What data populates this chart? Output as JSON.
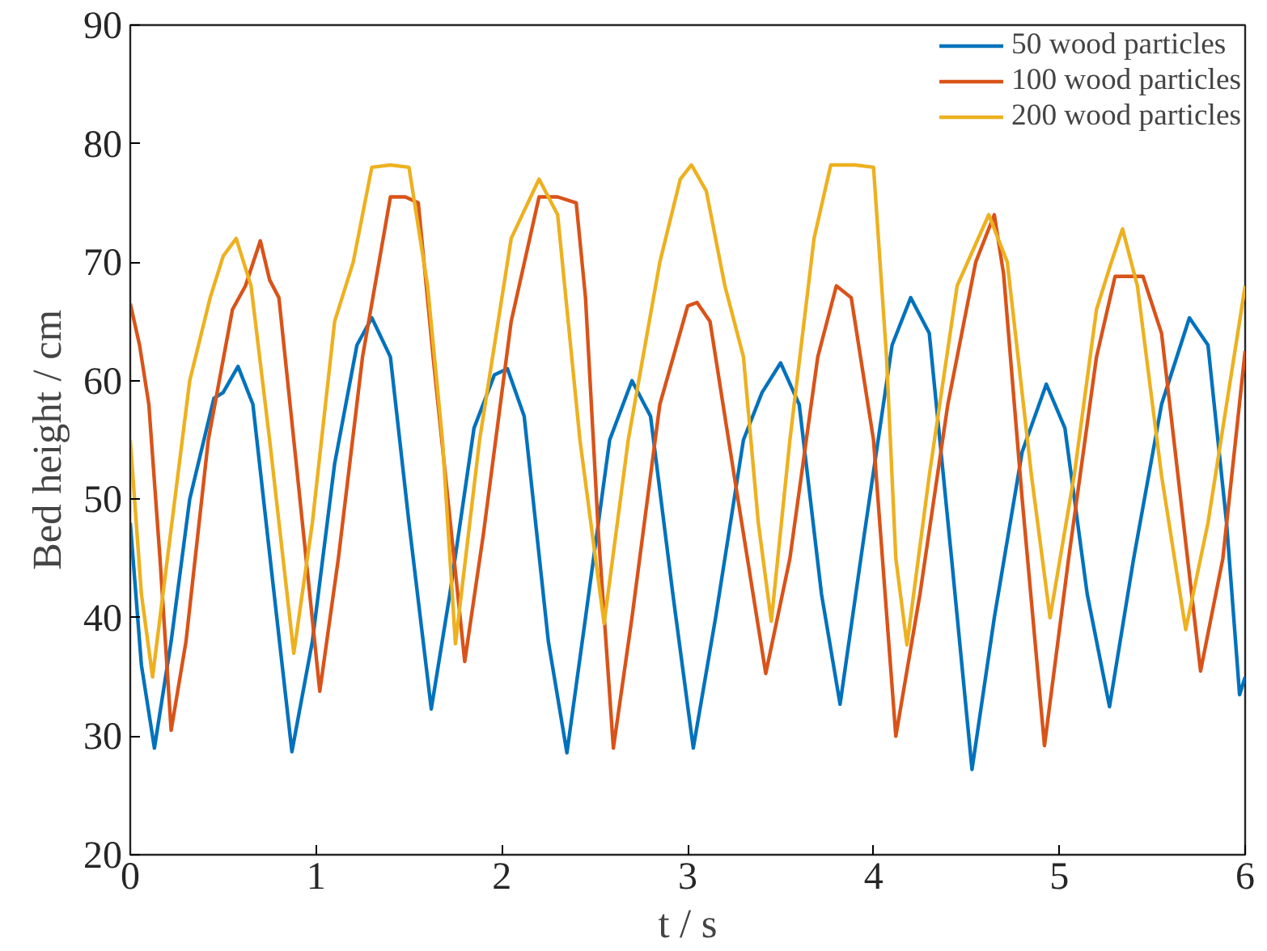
{
  "chart_data": {
    "type": "line",
    "xlabel": "t / s",
    "ylabel": "Bed height / cm",
    "xlim": [
      0,
      6
    ],
    "ylim": [
      20,
      90
    ],
    "xticks": [
      0,
      1,
      2,
      3,
      4,
      5,
      6
    ],
    "yticks": [
      20,
      30,
      40,
      50,
      60,
      70,
      80,
      90
    ],
    "grid": false,
    "legend": "top right",
    "line_style": "solid",
    "marker": "none",
    "series": [
      {
        "name": "50 wood particles",
        "color": "#0072bd",
        "x": [
          0,
          0.06,
          0.13,
          0.22,
          0.32,
          0.45,
          0.5,
          0.58,
          0.66,
          0.76,
          0.87,
          0.98,
          1.1,
          1.22,
          1.3,
          1.4,
          1.5,
          1.62,
          1.72,
          1.85,
          1.96,
          2.03,
          2.12,
          2.25,
          2.35,
          2.45,
          2.58,
          2.7,
          2.8,
          2.92,
          3.03,
          3.15,
          3.3,
          3.4,
          3.5,
          3.6,
          3.72,
          3.82,
          3.95,
          4.1,
          4.2,
          4.3,
          4.42,
          4.53,
          4.65,
          4.8,
          4.93,
          5.03,
          5.15,
          5.27,
          5.4,
          5.55,
          5.7,
          5.8,
          5.9,
          5.97,
          6
        ],
        "values": [
          48,
          36,
          29,
          38,
          50,
          58.5,
          59,
          61.2,
          58,
          44,
          28.7,
          38,
          53,
          63,
          65.3,
          62,
          48,
          32.3,
          42,
          56,
          60.5,
          61,
          57,
          38,
          28.6,
          40,
          55,
          60,
          57,
          42,
          29,
          40,
          55,
          59,
          61.5,
          58,
          42,
          32.7,
          47,
          63,
          67,
          64,
          45,
          27.2,
          40,
          54,
          59.7,
          56,
          42,
          32.5,
          45,
          58,
          65.3,
          63,
          48,
          33.5,
          35
        ]
      },
      {
        "name": "100 wood particles",
        "color": "#d95319",
        "x": [
          0,
          0.05,
          0.1,
          0.16,
          0.22,
          0.3,
          0.42,
          0.55,
          0.62,
          0.7,
          0.75,
          0.8,
          0.9,
          1.02,
          1.12,
          1.25,
          1.4,
          1.48,
          1.55,
          1.63,
          1.8,
          1.9,
          2.05,
          2.2,
          2.3,
          2.4,
          2.45,
          2.52,
          2.6,
          2.7,
          2.85,
          3.0,
          3.05,
          3.12,
          3.25,
          3.42,
          3.55,
          3.7,
          3.8,
          3.88,
          4.0,
          4.12,
          4.25,
          4.4,
          4.55,
          4.65,
          4.7,
          4.8,
          4.92,
          5.05,
          5.2,
          5.3,
          5.45,
          5.55,
          5.76,
          5.88,
          6
        ],
        "values": [
          66.5,
          63,
          58,
          45,
          30.5,
          38,
          55,
          66,
          68,
          71.8,
          68.5,
          67,
          52,
          33.8,
          45,
          62,
          75.5,
          75.5,
          75,
          62,
          36.3,
          47,
          65,
          75.5,
          75.5,
          75,
          67,
          47,
          29,
          40,
          58,
          66.3,
          66.6,
          65,
          52,
          35.3,
          45,
          62,
          68,
          67,
          55,
          30,
          42,
          58,
          70,
          74,
          69,
          50,
          29.2,
          45,
          62,
          68.8,
          68.8,
          64,
          35.5,
          45,
          62.5
        ]
      },
      {
        "name": "200 wood particles",
        "color": "#edb120",
        "x": [
          0,
          0.06,
          0.12,
          0.2,
          0.32,
          0.43,
          0.5,
          0.57,
          0.65,
          0.75,
          0.88,
          0.98,
          1.1,
          1.2,
          1.3,
          1.4,
          1.5,
          1.6,
          1.68,
          1.75,
          1.88,
          2.05,
          2.2,
          2.3,
          2.42,
          2.55,
          2.68,
          2.85,
          2.96,
          3.02,
          3.1,
          3.2,
          3.3,
          3.38,
          3.45,
          3.55,
          3.68,
          3.77,
          3.9,
          4.0,
          4.07,
          4.12,
          4.18,
          4.3,
          4.45,
          4.62,
          4.72,
          4.85,
          4.95,
          5.08,
          5.2,
          5.28,
          5.34,
          5.42,
          5.55,
          5.68,
          5.8,
          5.9,
          6
        ],
        "values": [
          55,
          42,
          35,
          45,
          60,
          67,
          70.5,
          72,
          68,
          55,
          37,
          48,
          65,
          70,
          78,
          78.2,
          78,
          68,
          55,
          37.8,
          55,
          72,
          77,
          74,
          55,
          39.5,
          55,
          70,
          77,
          78.2,
          76,
          68,
          62,
          48,
          39.7,
          55,
          72,
          78.2,
          78.2,
          78,
          62,
          45,
          37.7,
          52,
          68,
          74,
          70,
          52,
          40,
          52,
          66,
          70,
          72.8,
          68,
          52,
          39,
          48,
          58,
          68
        ]
      }
    ]
  }
}
